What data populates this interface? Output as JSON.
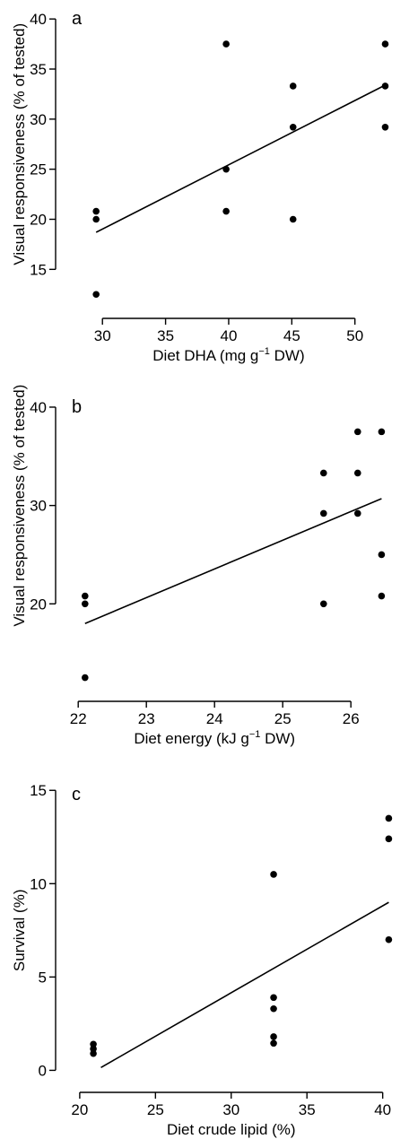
{
  "chart_data": [
    {
      "type": "scatter",
      "panel_label": "a",
      "xlabel": "Diet DHA (mg g",
      "xlabel_sup": "−1",
      "xlabel_tail": " DW)",
      "ylabel": "Visual responsiveness (% of tested)",
      "xlim": [
        27,
        54
      ],
      "ylim": [
        11,
        41
      ],
      "xticks": [
        30,
        35,
        40,
        45,
        50
      ],
      "yticks": [
        15,
        20,
        25,
        30,
        35,
        40
      ],
      "points": [
        [
          29.5,
          20.8
        ],
        [
          29.5,
          20.0
        ],
        [
          29.5,
          12.5
        ],
        [
          39.8,
          37.5
        ],
        [
          39.8,
          25.0
        ],
        [
          39.8,
          20.8
        ],
        [
          45.1,
          33.3
        ],
        [
          45.1,
          29.2
        ],
        [
          45.1,
          20.0
        ],
        [
          52.4,
          37.5
        ],
        [
          52.4,
          33.3
        ],
        [
          52.4,
          29.2
        ]
      ],
      "fit_line": [
        [
          29.5,
          18.7
        ],
        [
          52.4,
          33.4
        ]
      ]
    },
    {
      "type": "scatter",
      "panel_label": "b",
      "xlabel": "Diet energy (kJ g",
      "xlabel_sup": "−1",
      "xlabel_tail": " DW)",
      "ylabel": "Visual responsiveness (% of tested)",
      "xlim": [
        21.8,
        26.8
      ],
      "ylim": [
        11,
        41
      ],
      "xticks": [
        22,
        23,
        24,
        25,
        26
      ],
      "yticks": [
        20,
        30,
        40
      ],
      "points": [
        [
          22.1,
          20.8
        ],
        [
          22.1,
          20.0
        ],
        [
          22.1,
          12.5
        ],
        [
          25.6,
          33.3
        ],
        [
          25.6,
          29.2
        ],
        [
          25.6,
          20.0
        ],
        [
          26.1,
          37.5
        ],
        [
          26.1,
          33.3
        ],
        [
          26.1,
          29.2
        ],
        [
          26.45,
          37.5
        ],
        [
          26.45,
          25.0
        ],
        [
          26.45,
          20.8
        ]
      ],
      "fit_line": [
        [
          22.1,
          18.0
        ],
        [
          26.45,
          30.7
        ]
      ]
    },
    {
      "type": "scatter",
      "panel_label": "c",
      "xlabel": "Diet crude lipid (%)",
      "xlabel_sup": "",
      "xlabel_tail": "",
      "ylabel": "Survival (%)",
      "xlim": [
        19,
        41.5
      ],
      "ylim": [
        -0.7,
        15.3
      ],
      "xticks": [
        20,
        25,
        30,
        35,
        40
      ],
      "yticks": [
        0,
        5,
        10,
        15
      ],
      "points": [
        [
          20.9,
          1.4
        ],
        [
          20.9,
          1.15
        ],
        [
          20.9,
          0.9
        ],
        [
          32.8,
          10.5
        ],
        [
          32.8,
          3.9
        ],
        [
          32.8,
          3.3
        ],
        [
          32.8,
          1.8
        ],
        [
          32.8,
          1.45
        ],
        [
          40.4,
          13.5
        ],
        [
          40.4,
          12.4
        ],
        [
          40.4,
          7.0
        ]
      ],
      "fit_line": [
        [
          21.4,
          0.15
        ],
        [
          40.4,
          9.0
        ]
      ]
    }
  ]
}
